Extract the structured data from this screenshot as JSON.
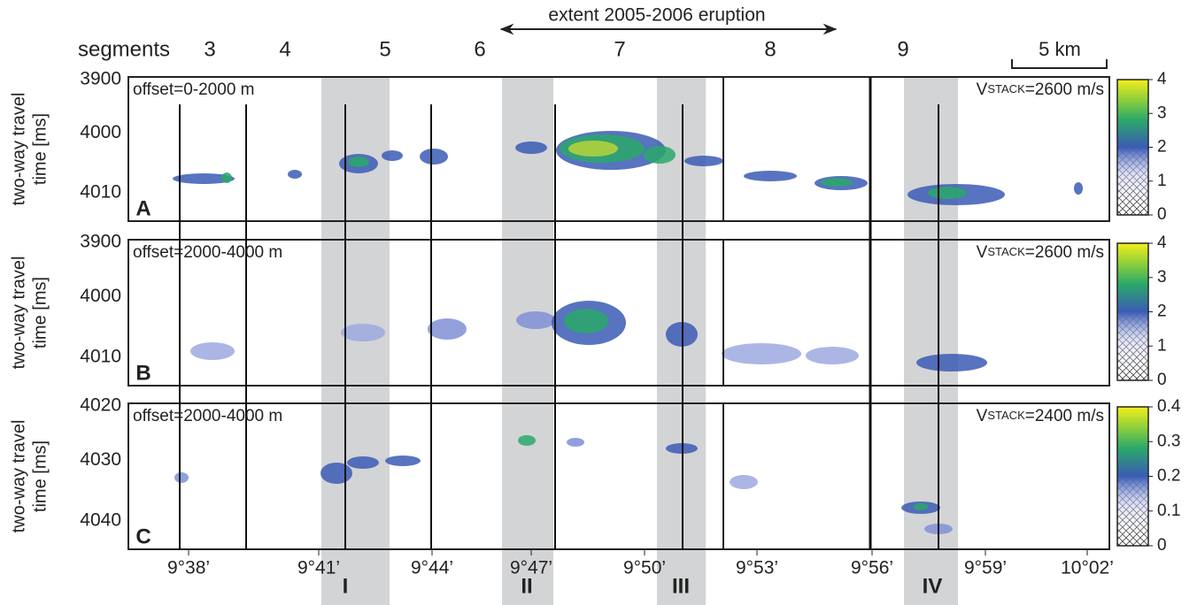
{
  "header": {
    "segments_label": "segments",
    "segments": [
      "3",
      "4",
      "5",
      "6",
      "7",
      "8",
      "9"
    ],
    "eruption": "extent 2005-2006 eruption",
    "scale": "5 km"
  },
  "y_axis_title": [
    "two-way travel",
    "time [ms]"
  ],
  "x_labels": [
    "9°38’",
    "9°41’",
    "9°44’",
    "9°47’",
    "9°50’",
    "9°53’",
    "9°56’",
    "9°59’",
    "10°02’"
  ],
  "zones": [
    "I",
    "II",
    "III",
    "IV"
  ],
  "panels": [
    {
      "letter": "A",
      "offset": "offset=0-2000 m",
      "velocity": {
        "symbol": "V",
        "subscript": "STACK",
        "value": "=2600 m/s"
      },
      "y_labels": [
        "3900",
        "4000",
        "4010"
      ],
      "colorbar": [
        "4",
        "3",
        "2",
        "1",
        "0"
      ]
    },
    {
      "letter": "B",
      "offset": "offset=2000-4000 m",
      "velocity": {
        "symbol": "V",
        "subscript": "STACK",
        "value": "=2600 m/s"
      },
      "y_labels": [
        "3900",
        "4000",
        "4010"
      ],
      "colorbar": [
        "4",
        "3",
        "2",
        "1",
        "0"
      ]
    },
    {
      "letter": "C",
      "offset": "offset=2000-4000 m",
      "velocity": {
        "symbol": "V",
        "subscript": "STACK",
        "value": "=2400 m/s"
      },
      "y_labels": [
        "4020",
        "4030",
        "4040"
      ],
      "colorbar": [
        "0.4",
        "0.3",
        "0.2",
        "0.1",
        "0"
      ]
    }
  ]
}
